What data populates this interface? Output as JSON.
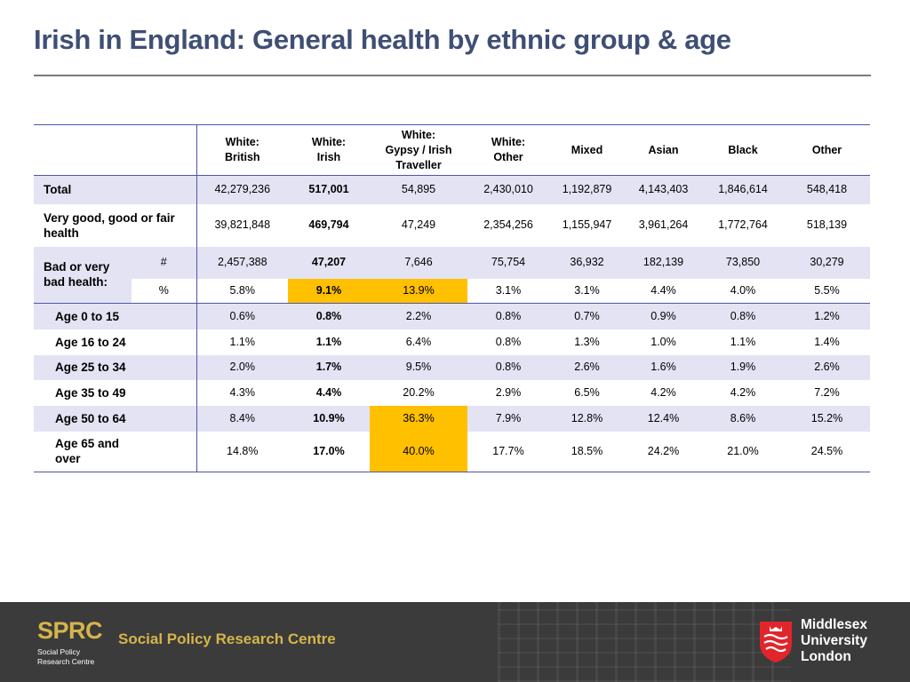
{
  "title": "Irish in England: General health by ethnic group & age",
  "table": {
    "headers": [
      "White:\nBritish",
      "White:\nIrish",
      "White:\nGypsy / Irish\nTraveller",
      "White:\nOther",
      "Mixed",
      "Asian",
      "Black",
      "Other"
    ],
    "total": {
      "label": "Total",
      "values": [
        "42,279,236",
        "517,001",
        "54,895",
        "2,430,010",
        "1,192,879",
        "4,143,403",
        "1,846,614",
        "548,418"
      ]
    },
    "good": {
      "label": "Very good, good or fair health",
      "values": [
        "39,821,848",
        "469,794",
        "47,249",
        "2,354,256",
        "1,155,947",
        "3,961,264",
        "1,772,764",
        "518,139"
      ]
    },
    "bad_label": "Bad or very bad health:",
    "bad_num": {
      "label": "#",
      "values": [
        "2,457,388",
        "47,207",
        "7,646",
        "75,754",
        "36,932",
        "182,139",
        "73,850",
        "30,279"
      ]
    },
    "bad_pct": {
      "label": "%",
      "values": [
        "5.8%",
        "9.1%",
        "13.9%",
        "3.1%",
        "3.1%",
        "4.4%",
        "4.0%",
        "5.5%"
      ]
    },
    "age_rows": [
      {
        "label": "Age 0 to 15",
        "values": [
          "0.6%",
          "0.8%",
          "2.2%",
          "0.8%",
          "0.7%",
          "0.9%",
          "0.8%",
          "1.2%"
        ]
      },
      {
        "label": "Age 16 to 24",
        "values": [
          "1.1%",
          "1.1%",
          "6.4%",
          "0.8%",
          "1.3%",
          "1.0%",
          "1.1%",
          "1.4%"
        ]
      },
      {
        "label": "Age 25 to 34",
        "values": [
          "2.0%",
          "1.7%",
          "9.5%",
          "0.8%",
          "2.6%",
          "1.6%",
          "1.9%",
          "2.6%"
        ]
      },
      {
        "label": "Age 35 to 49",
        "values": [
          "4.3%",
          "4.4%",
          "20.2%",
          "2.9%",
          "6.5%",
          "4.2%",
          "4.2%",
          "7.2%"
        ]
      },
      {
        "label": "Age 50 to 64",
        "values": [
          "8.4%",
          "10.9%",
          "36.3%",
          "7.9%",
          "12.8%",
          "12.4%",
          "8.6%",
          "15.2%"
        ]
      },
      {
        "label": "Age 65 and over",
        "values": [
          "14.8%",
          "17.0%",
          "40.0%",
          "17.7%",
          "18.5%",
          "24.2%",
          "21.0%",
          "24.5%"
        ]
      }
    ],
    "highlight_color": "#ffc000",
    "band_color": "#e3e3f4",
    "rule_color": "#4f54a6"
  },
  "footer": {
    "sprc_logo": "SPRC",
    "sprc_small": "Social Policy\nResearch Centre",
    "sprc_name": "Social Policy Research Centre",
    "university": "Middlesex\nUniversity\nLondon",
    "brand_gold": "#d5b54a",
    "brand_red": "#e0262b"
  }
}
